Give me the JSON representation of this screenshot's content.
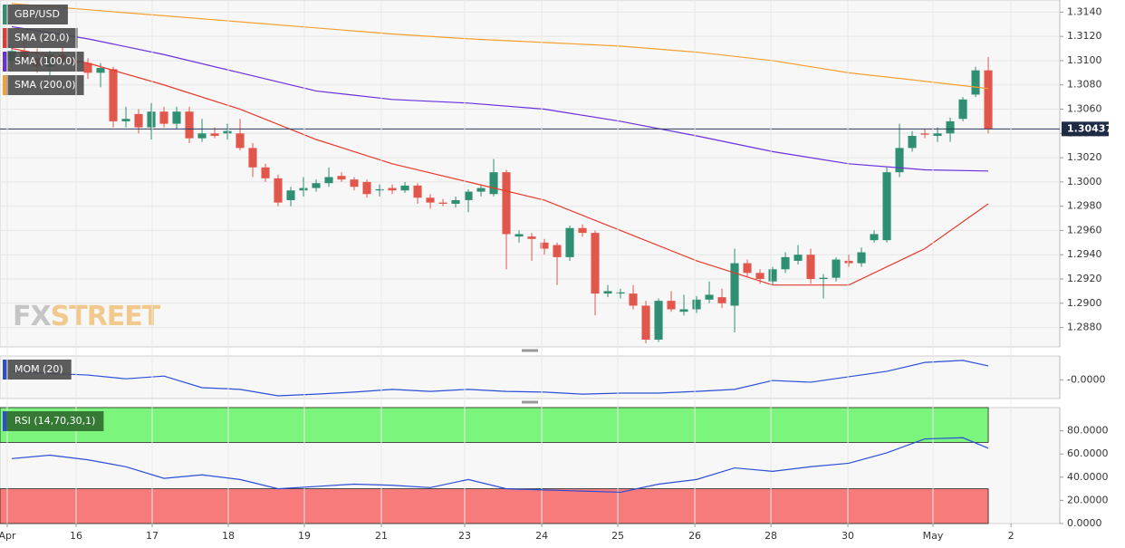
{
  "chart_data": [
    {
      "type": "candlestick",
      "name": "GBP/USD",
      "up_color": "#2f8f72",
      "down_color": "#e2574c",
      "x": [
        0,
        1,
        2,
        3,
        4,
        5,
        6,
        7,
        8,
        9,
        10,
        11,
        12,
        13,
        14,
        15,
        16,
        17,
        18,
        19,
        20,
        21,
        22,
        23,
        24,
        25,
        26,
        27,
        28,
        29,
        30,
        31,
        32,
        33,
        34,
        35,
        36,
        37,
        38,
        39,
        40,
        41,
        42,
        43,
        44,
        45,
        46,
        47,
        48,
        49,
        50,
        51,
        52,
        53,
        54,
        55,
        56,
        57,
        58,
        59,
        60,
        61,
        62,
        63,
        64,
        65,
        66,
        67,
        68,
        69,
        70,
        71,
        72,
        73,
        74,
        75,
        76,
        77
      ],
      "open": [
        1.31,
        1.3108,
        1.3102,
        1.3095,
        1.3105,
        1.31,
        1.3098,
        1.309,
        1.3093,
        1.305,
        1.3056,
        1.3045,
        1.3058,
        1.3048,
        1.3058,
        1.3036,
        1.304,
        1.304,
        1.304,
        1.3028,
        1.3012,
        1.3003,
        1.2985,
        1.2993,
        1.2995,
        1.2999,
        1.3005,
        1.3002,
        1.3,
        1.2993,
        1.2995,
        1.2993,
        1.2997,
        1.2987,
        1.2983,
        1.2982,
        1.2985,
        1.2992,
        1.299,
        1.3008,
        1.2955,
        1.2955,
        1.295,
        1.2948,
        1.2938,
        1.2962,
        1.2958,
        1.2908,
        1.2908,
        1.2908,
        1.2898,
        1.287,
        1.2902,
        1.2893,
        1.2895,
        1.2903,
        1.2905,
        1.2898,
        1.2933,
        1.2925,
        1.2918,
        1.2928,
        1.2935,
        1.294,
        1.292,
        1.2921,
        1.2935,
        1.2933,
        1.2952,
        1.2952,
        1.3008,
        1.3028,
        1.304,
        1.3038,
        1.304,
        1.3052,
        1.3072,
        1.3092
      ],
      "high": [
        1.3112,
        1.3115,
        1.311,
        1.3108,
        1.3112,
        1.3106,
        1.3102,
        1.3098,
        1.3095,
        1.3062,
        1.306,
        1.3065,
        1.3062,
        1.3062,
        1.3062,
        1.3052,
        1.3045,
        1.3048,
        1.3052,
        1.3032,
        1.3015,
        1.3006,
        1.2996,
        1.3004,
        1.3002,
        1.3012,
        1.3008,
        1.3004,
        1.3002,
        1.2998,
        1.2998,
        1.3,
        1.2999,
        1.299,
        1.2986,
        1.2988,
        1.2994,
        1.2998,
        1.3019,
        1.301,
        1.296,
        1.2958,
        1.2953,
        1.295,
        1.2964,
        1.2965,
        1.296,
        1.2915,
        1.2912,
        1.2915,
        1.2902,
        1.2904,
        1.291,
        1.2907,
        1.2906,
        1.2918,
        1.2912,
        1.2945,
        1.2936,
        1.2928,
        1.293,
        1.2942,
        1.2948,
        1.2945,
        1.2924,
        1.2938,
        1.294,
        1.2946,
        1.296,
        1.3012,
        1.3048,
        1.3042,
        1.3044,
        1.3045,
        1.3053,
        1.307,
        1.3095,
        1.3103
      ],
      "low": [
        1.3095,
        1.3098,
        1.309,
        1.3088,
        1.3098,
        1.3092,
        1.3085,
        1.3078,
        1.3045,
        1.3045,
        1.304,
        1.3035,
        1.3045,
        1.3044,
        1.3032,
        1.3033,
        1.3036,
        1.3035,
        1.3026,
        1.3004,
        1.3,
        1.298,
        1.298,
        1.2988,
        1.2992,
        1.2996,
        1.3,
        1.2993,
        1.2987,
        1.2988,
        1.299,
        1.2991,
        1.2982,
        1.2978,
        1.298,
        1.2979,
        1.2975,
        1.2988,
        1.2988,
        1.2928,
        1.295,
        1.2935,
        1.294,
        1.2915,
        1.2935,
        1.2955,
        1.289,
        1.2905,
        1.2904,
        1.2895,
        1.2867,
        1.2868,
        1.2893,
        1.289,
        1.2892,
        1.29,
        1.2896,
        1.2876,
        1.2922,
        1.2916,
        1.2915,
        1.2925,
        1.2932,
        1.2916,
        1.2904,
        1.2918,
        1.293,
        1.293,
        1.295,
        1.295,
        1.3004,
        1.3025,
        1.3036,
        1.3033,
        1.3033,
        1.305,
        1.307,
        1.304
      ],
      "close": [
        1.3108,
        1.3102,
        1.3095,
        1.3105,
        1.31,
        1.3098,
        1.309,
        1.3094,
        1.305,
        1.3052,
        1.3045,
        1.3058,
        1.3048,
        1.3058,
        1.3036,
        1.304,
        1.3038,
        1.3042,
        1.3028,
        1.3012,
        1.3003,
        1.2983,
        1.2993,
        1.2995,
        1.2999,
        1.3004,
        1.3002,
        1.2996,
        1.299,
        1.2994,
        1.2993,
        1.2997,
        1.2987,
        1.2983,
        1.2982,
        1.2985,
        1.2992,
        1.2995,
        1.3008,
        1.2957,
        1.2957,
        1.2953,
        1.2945,
        1.2938,
        1.2962,
        1.2958,
        1.2908,
        1.291,
        1.2909,
        1.2898,
        1.287,
        1.2902,
        1.2895,
        1.2895,
        1.2903,
        1.2907,
        1.29,
        1.2933,
        1.2925,
        1.292,
        1.2928,
        1.2938,
        1.294,
        1.292,
        1.2921,
        1.2936,
        1.2933,
        1.2942,
        1.2957,
        1.3008,
        1.3028,
        1.3038,
        1.3039,
        1.304,
        1.305,
        1.3068,
        1.3092,
        1.30437
      ],
      "last_price": 1.30437,
      "series": [
        {
          "name": "SMA (20,0)",
          "color": "#e8392b",
          "x": [
            0,
            6,
            12,
            18,
            24,
            30,
            36,
            42,
            48,
            54,
            60,
            66,
            72,
            77
          ],
          "values": [
            1.311,
            1.3098,
            1.308,
            1.306,
            1.3035,
            1.3015,
            1.3,
            1.2985,
            1.296,
            1.2935,
            1.2915,
            1.2915,
            1.2945,
            1.2982
          ]
        },
        {
          "name": "SMA (100,0)",
          "color": "#6a2fdc",
          "x": [
            0,
            6,
            12,
            18,
            24,
            30,
            36,
            42,
            48,
            54,
            60,
            66,
            72,
            77
          ],
          "values": [
            1.3128,
            1.3118,
            1.3105,
            1.309,
            1.3075,
            1.3068,
            1.3065,
            1.306,
            1.305,
            1.3038,
            1.3025,
            1.3015,
            1.301,
            1.3009
          ]
        },
        {
          "name": "SMA (200,0)",
          "color": "#f5a030",
          "x": [
            0,
            6,
            12,
            18,
            24,
            30,
            36,
            42,
            48,
            54,
            60,
            66,
            72,
            77
          ],
          "values": [
            1.3147,
            1.3142,
            1.3137,
            1.3132,
            1.3127,
            1.3122,
            1.3118,
            1.3115,
            1.3112,
            1.3107,
            1.31,
            1.309,
            1.3083,
            1.3077
          ]
        }
      ],
      "xlim": [
        -0.93,
        82.64
      ],
      "ylim": [
        1.2864,
        1.315
      ],
      "yticks": [
        {
          "value": 1.314,
          "label": "1.3140"
        },
        {
          "value": 1.312,
          "label": "1.3120"
        },
        {
          "value": 1.31,
          "label": "1.3100"
        },
        {
          "value": 1.308,
          "label": "1.3080"
        },
        {
          "value": 1.306,
          "label": "1.3060"
        },
        {
          "value": 1.304,
          "label": "1.3040"
        },
        {
          "value": 1.302,
          "label": "1.3020"
        },
        {
          "value": 1.3,
          "label": "1.3000"
        },
        {
          "value": 1.298,
          "label": "1.2980"
        },
        {
          "value": 1.296,
          "label": "1.2960"
        },
        {
          "value": 1.294,
          "label": "1.2940"
        },
        {
          "value": 1.292,
          "label": "1.2920"
        },
        {
          "value": 1.29,
          "label": "1.2900"
        },
        {
          "value": 1.288,
          "label": "1.2880"
        }
      ],
      "grid": true,
      "watermark": {
        "fx": "FX",
        "street": "STREET"
      }
    },
    {
      "type": "line",
      "series": [
        {
          "name": "MOM (20)",
          "color": "#2a4fd6",
          "x": [
            0,
            3,
            6,
            9,
            12,
            15,
            18,
            21,
            24,
            27,
            30,
            33,
            36,
            39,
            42,
            45,
            48,
            51,
            54,
            57,
            60,
            63,
            66,
            69,
            72,
            75,
            77
          ],
          "values": [
            0.0025,
            0.0019,
            0.0014,
            0.0003,
            0.0011,
            -0.0023,
            -0.0028,
            -0.0047,
            -0.0042,
            -0.0036,
            -0.0028,
            -0.0034,
            -0.0028,
            -0.0034,
            -0.0036,
            -0.0042,
            -0.0039,
            -0.0039,
            -0.0034,
            -0.0028,
            -0.0002,
            -0.0007,
            0.0009,
            0.0025,
            0.0051,
            0.0057,
            0.0041
          ]
        }
      ],
      "xlim": [
        -0.93,
        82.64
      ],
      "ylim": [
        -0.0055,
        0.007
      ],
      "yticks": [
        {
          "value": 0,
          "label": "-0.0000"
        }
      ]
    },
    {
      "type": "line",
      "series": [
        {
          "name": "RSI (14,70,30,1)",
          "color": "#2a4fd6",
          "x": [
            0,
            3,
            6,
            9,
            12,
            15,
            18,
            21,
            24,
            27,
            30,
            33,
            36,
            39,
            42,
            45,
            48,
            51,
            54,
            57,
            60,
            63,
            66,
            69,
            72,
            75,
            77
          ],
          "values": [
            56,
            59,
            55,
            49,
            39,
            42,
            38,
            30,
            32,
            34,
            33,
            31,
            38,
            30,
            29,
            28,
            27,
            34,
            38,
            48,
            45,
            49,
            52,
            61,
            73,
            74,
            65
          ]
        }
      ],
      "zones": [
        {
          "from": 70,
          "to": 100,
          "color": "#7cf57c"
        },
        {
          "from": 0,
          "to": 30,
          "color": "#f77b7b"
        }
      ],
      "xlim": [
        -0.93,
        82.64
      ],
      "ylim": [
        0,
        100
      ],
      "yticks": [
        {
          "value": 80,
          "label": "80.0000"
        },
        {
          "value": 60,
          "label": "60.0000"
        },
        {
          "value": 40,
          "label": "40.0000"
        },
        {
          "value": 20,
          "label": "20.0000"
        },
        {
          "value": 0,
          "label": "0.0000"
        }
      ],
      "xticks": [
        {
          "value": -0.36,
          "label": "Apr"
        },
        {
          "value": 5.07,
          "label": "16"
        },
        {
          "value": 11.07,
          "label": "17"
        },
        {
          "value": 17.07,
          "label": "18"
        },
        {
          "value": 23.07,
          "label": "19"
        },
        {
          "value": 29.14,
          "label": "21"
        },
        {
          "value": 35.71,
          "label": "23"
        },
        {
          "value": 41.79,
          "label": "24"
        },
        {
          "value": 47.79,
          "label": "25"
        },
        {
          "value": 53.86,
          "label": "26"
        },
        {
          "value": 59.86,
          "label": "28"
        },
        {
          "value": 65.93,
          "label": "30"
        },
        {
          "value": 72.64,
          "label": "May"
        },
        {
          "value": 78.79,
          "label": "2"
        }
      ]
    }
  ]
}
